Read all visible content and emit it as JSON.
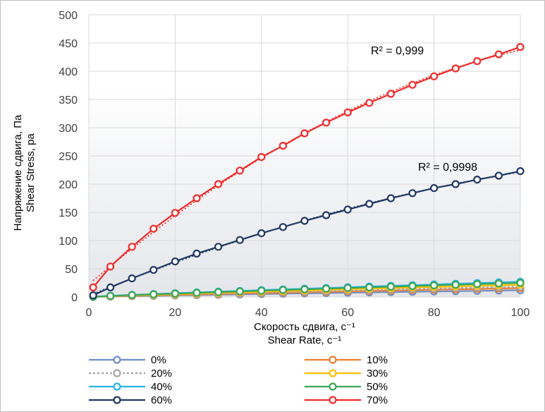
{
  "chart_data": {
    "type": "line",
    "xlabel_lines": [
      "Скорость сдвига, с⁻¹",
      "Shear Rate, с⁻¹"
    ],
    "ylabel_lines": [
      "Напряжение сдвига, Па",
      "Shear Stress, pa"
    ],
    "xlim": [
      0,
      100
    ],
    "ylim": [
      0,
      500
    ],
    "x_ticks": [
      "0",
      "20",
      "40",
      "60",
      "80",
      "100"
    ],
    "y_ticks": [
      "0",
      "50",
      "100",
      "150",
      "200",
      "250",
      "300",
      "350",
      "400",
      "450",
      "500"
    ],
    "grid": true,
    "legend_position": "bottom",
    "x": [
      1,
      5,
      10,
      15,
      20,
      25,
      30,
      35,
      40,
      45,
      50,
      55,
      60,
      65,
      70,
      75,
      80,
      85,
      90,
      95,
      100
    ],
    "series": [
      {
        "name": "0%",
        "color": "#6f8fc6",
        "dashed": false,
        "values": [
          0.2,
          0.8,
          1.5,
          2,
          2.8,
          3.4,
          4,
          4.6,
          5.3,
          5.9,
          6.5,
          7,
          7.6,
          8.1,
          8.7,
          9.2,
          9.8,
          10.3,
          10.9,
          11.4,
          12
        ]
      },
      {
        "name": "10%",
        "color": "#ed7d31",
        "dashed": false,
        "values": [
          0.3,
          1,
          2,
          2.8,
          3.6,
          4.4,
          5.2,
          6,
          6.8,
          7.6,
          8.4,
          9.1,
          9.9,
          10.6,
          11.4,
          12.1,
          12.9,
          13.6,
          14.3,
          15,
          15.7
        ]
      },
      {
        "name": "20%",
        "color": "#a5a5a5",
        "dashed": true,
        "values": [
          0.3,
          1.2,
          2.3,
          3.2,
          4.2,
          5.1,
          6,
          6.9,
          7.8,
          8.7,
          9.6,
          10.5,
          11.4,
          12.2,
          13.1,
          14,
          14.8,
          15.7,
          16.5,
          17.4,
          18.2
        ]
      },
      {
        "name": "30%",
        "color": "#ffc000",
        "dashed": false,
        "values": [
          0.4,
          1.5,
          2.8,
          4,
          5.1,
          6.2,
          7.3,
          8.4,
          9.5,
          10.6,
          11.6,
          12.7,
          13.7,
          14.8,
          15.8,
          16.8,
          17.8,
          18.8,
          19.8,
          20.8,
          21.8
        ]
      },
      {
        "name": "40%",
        "color": "#29b5e8",
        "dashed": false,
        "values": [
          0.5,
          2.2,
          3.8,
          5.3,
          6.7,
          8.1,
          9.5,
          10.8,
          12.2,
          13.5,
          14.8,
          16,
          17.3,
          18.6,
          19.8,
          21,
          22.3,
          23.5,
          24.7,
          25.9,
          27.1
        ]
      },
      {
        "name": "50%",
        "color": "#3aa655",
        "dashed": false,
        "values": [
          0.4,
          1.9,
          3.4,
          4.8,
          6.1,
          7.4,
          8.7,
          9.9,
          11.2,
          12.4,
          13.6,
          14.8,
          16,
          17.1,
          18.3,
          19.4,
          20.6,
          21.7,
          22.8,
          23.9,
          25
        ]
      },
      {
        "name": "60%",
        "color": "#203864",
        "dashed": false,
        "values": [
          3,
          17,
          33,
          48,
          63,
          77,
          89,
          101,
          113,
          124,
          135,
          145,
          155,
          165,
          175,
          184,
          193,
          200,
          208,
          215,
          223
        ]
      },
      {
        "name": "70%",
        "color": "#ee2b2b",
        "dashed": false,
        "values": [
          17,
          54,
          89,
          121,
          149,
          175,
          200,
          224,
          248,
          268,
          290,
          309,
          327,
          344,
          360,
          376,
          391,
          405,
          418,
          430,
          443
        ]
      }
    ],
    "annotations": [
      "R² = 0,999",
      "R² = 0,9998"
    ]
  }
}
